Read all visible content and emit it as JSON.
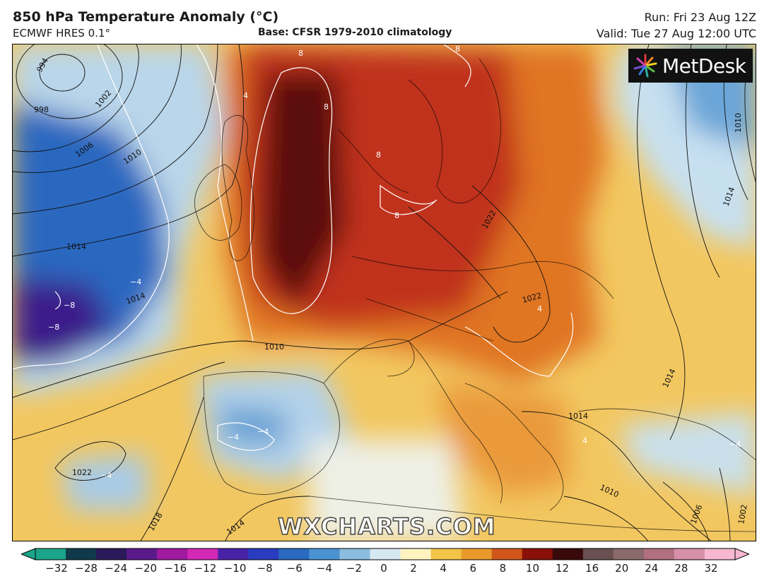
{
  "header": {
    "title": "850 hPa Temperature Anomaly (°C)",
    "model": "ECMWF HRES 0.1°",
    "base": "Base: CFSR 1979-2010 climatology",
    "run": "Run: Fri 23 Aug 12Z",
    "valid": "Valid: Tue 27 Aug 12:00 UTC"
  },
  "logo": {
    "text": "MetDesk",
    "icon": "metdesk-starburst-icon"
  },
  "watermark": "WXCHARTS.COM",
  "colorbar": {
    "ticks": [
      "−32",
      "−28",
      "−24",
      "−20",
      "−16",
      "−12",
      "−10",
      "−8",
      "−6",
      "−4",
      "−2",
      "0",
      "2",
      "4",
      "6",
      "8",
      "10",
      "12",
      "16",
      "20",
      "24",
      "28",
      "32"
    ],
    "colors": [
      "#1aa58a",
      "#103a4a",
      "#2a1a5a",
      "#5a1a8a",
      "#a01aa0",
      "#d22ab6",
      "#4a22a8",
      "#2a3cc0",
      "#2a6ac0",
      "#4a92d0",
      "#8cbde0",
      "#d6e8f0",
      "#fff4c0",
      "#f2c448",
      "#ea9a2c",
      "#d0561a",
      "#8a1008",
      "#3a0a0a",
      "#6a5050",
      "#8a6a6a",
      "#b07080",
      "#d890a8",
      "#f6b8d0"
    ]
  },
  "map": {
    "isobar_labels": [
      "994",
      "998",
      "1002",
      "1006",
      "1010",
      "1014",
      "1014",
      "1022",
      "1018",
      "1014",
      "1010",
      "1010",
      "1014",
      "1022",
      "1022",
      "1014",
      "1014",
      "1010",
      "1006",
      "1002"
    ],
    "anomaly_labels": [
      "8",
      "8",
      "8",
      "4",
      "8",
      "8",
      "−4",
      "−8",
      "−8",
      "4",
      "4",
      "−4",
      "−4",
      "−4",
      "−4"
    ]
  }
}
